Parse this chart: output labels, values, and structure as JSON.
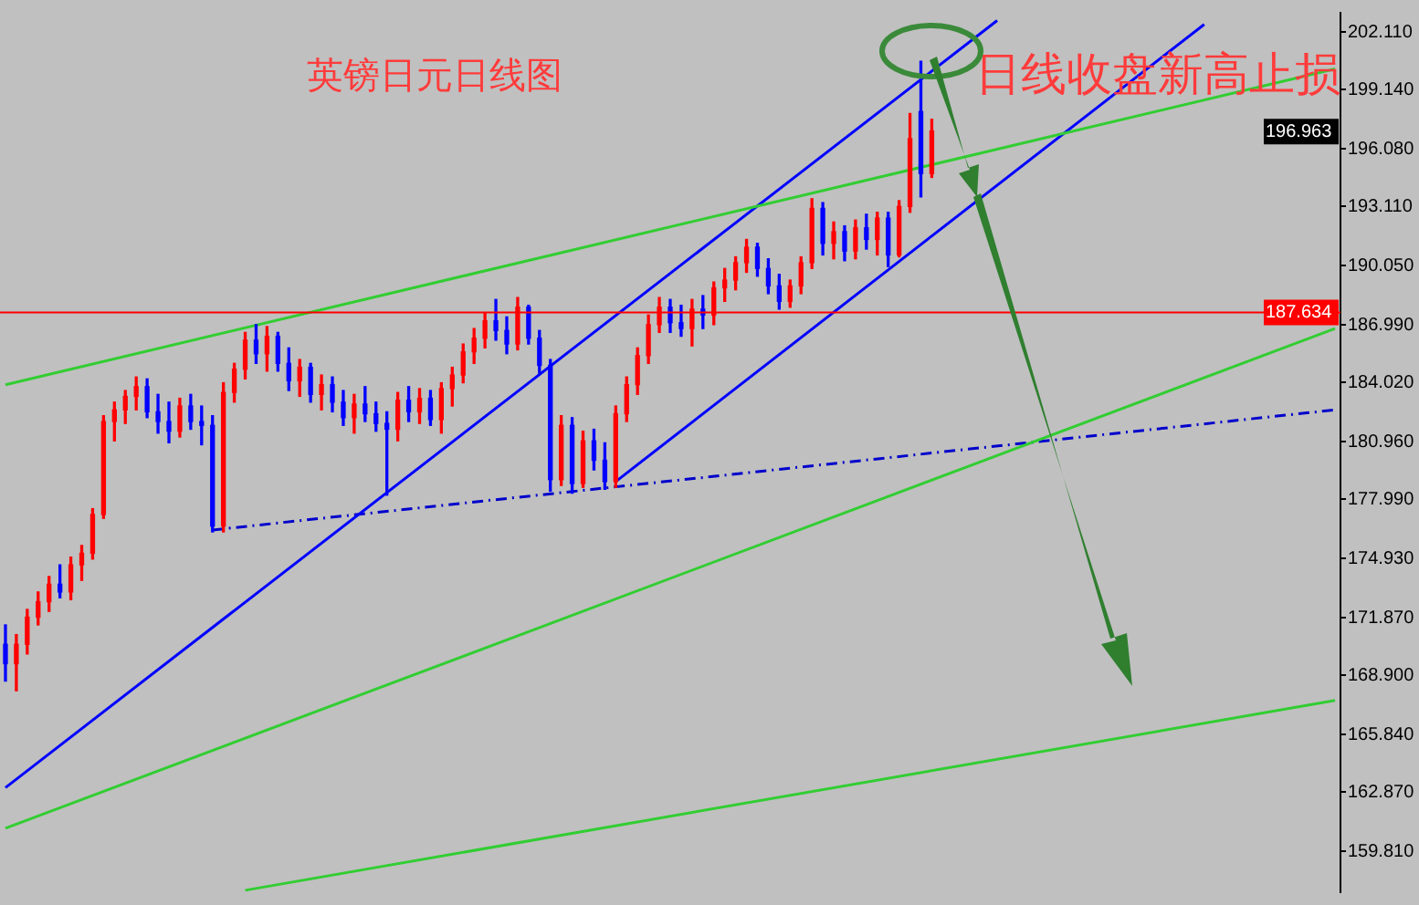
{
  "chart_data": {
    "type": "candlestick",
    "title": "英镑日元日线图",
    "categories": [
      null,
      null,
      null,
      null,
      null,
      null,
      null,
      null,
      null,
      null,
      null,
      null,
      null,
      null,
      null,
      null,
      null,
      null,
      null,
      null,
      null,
      null,
      null,
      null,
      null,
      null,
      null,
      null,
      null,
      null,
      null,
      null,
      null,
      null,
      null,
      null,
      null,
      null,
      null,
      null,
      null,
      null,
      null,
      null,
      null,
      null,
      null,
      null,
      null,
      null,
      null,
      null,
      null,
      null,
      null,
      null,
      null,
      null,
      null,
      null,
      null,
      null,
      null,
      null,
      null,
      null,
      null,
      null,
      null,
      null,
      null,
      null,
      null,
      null,
      null,
      null,
      null,
      null,
      null,
      null,
      null,
      null,
      null,
      null,
      null,
      null,
      null,
      null,
      null,
      null,
      null,
      null,
      null,
      null,
      null,
      null,
      null,
      null,
      null,
      null,
      null,
      null,
      null,
      null,
      null,
      null,
      null,
      null,
      null,
      null,
      null,
      null,
      null,
      null,
      null,
      null,
      null,
      null,
      null,
      null,
      null,
      null,
      null
    ],
    "ohlc": [
      [
        170.5,
        171.5,
        168.6,
        169.5
      ],
      [
        169.5,
        171.0,
        168.1,
        170.5
      ],
      [
        170.5,
        172.3,
        170.0,
        171.9
      ],
      [
        171.9,
        173.2,
        171.5,
        172.7
      ],
      [
        172.7,
        174.0,
        172.2,
        173.6
      ],
      [
        173.6,
        174.6,
        172.9,
        173.2
      ],
      [
        173.2,
        175.0,
        172.8,
        174.6
      ],
      [
        174.6,
        175.6,
        173.8,
        175.2
      ],
      [
        175.2,
        177.5,
        174.9,
        177.2
      ],
      [
        177.2,
        182.3,
        177.0,
        182.0
      ],
      [
        182.0,
        183.0,
        181.0,
        182.6
      ],
      [
        182.6,
        183.6,
        181.9,
        183.3
      ],
      [
        183.3,
        184.3,
        182.6,
        183.8
      ],
      [
        183.8,
        184.2,
        182.2,
        182.5
      ],
      [
        182.5,
        183.4,
        181.4,
        182.0
      ],
      [
        182.0,
        183.0,
        180.9,
        181.5
      ],
      [
        181.5,
        183.2,
        181.2,
        182.8
      ],
      [
        182.8,
        183.4,
        181.6,
        182.0
      ],
      [
        182.0,
        182.8,
        180.8,
        181.8
      ],
      [
        181.8,
        182.3,
        176.3,
        176.6
      ],
      [
        176.6,
        184.0,
        176.3,
        183.5
      ],
      [
        183.5,
        185.0,
        183.0,
        184.7
      ],
      [
        184.7,
        186.6,
        184.2,
        186.2
      ],
      [
        186.2,
        187.0,
        185.0,
        185.5
      ],
      [
        185.5,
        186.9,
        184.6,
        186.4
      ],
      [
        186.4,
        186.6,
        184.6,
        185.0
      ],
      [
        185.0,
        185.8,
        183.6,
        184.1
      ],
      [
        184.1,
        185.2,
        183.3,
        184.8
      ],
      [
        184.8,
        185.0,
        183.0,
        183.4
      ],
      [
        183.4,
        184.4,
        182.6,
        183.9
      ],
      [
        183.9,
        184.3,
        182.5,
        183.0
      ],
      [
        183.0,
        183.6,
        181.8,
        182.2
      ],
      [
        182.2,
        183.4,
        181.4,
        182.9
      ],
      [
        182.9,
        183.8,
        182.0,
        182.4
      ],
      [
        182.4,
        183.0,
        181.5,
        181.9
      ],
      [
        181.9,
        182.5,
        178.2,
        181.6
      ],
      [
        181.6,
        183.5,
        181.0,
        183.1
      ],
      [
        183.1,
        183.8,
        182.0,
        182.5
      ],
      [
        182.5,
        183.7,
        181.9,
        183.2
      ],
      [
        183.2,
        183.6,
        181.8,
        182.1
      ],
      [
        182.1,
        184.0,
        181.4,
        183.7
      ],
      [
        183.7,
        184.8,
        182.8,
        184.4
      ],
      [
        184.4,
        186.0,
        184.0,
        185.6
      ],
      [
        185.6,
        186.8,
        185.0,
        186.3
      ],
      [
        186.3,
        187.6,
        185.8,
        187.2
      ],
      [
        187.2,
        188.3,
        186.2,
        186.7
      ],
      [
        186.7,
        187.4,
        185.5,
        186.0
      ],
      [
        186.0,
        188.4,
        185.7,
        187.9
      ],
      [
        187.9,
        188.0,
        186.0,
        186.3
      ],
      [
        186.3,
        186.7,
        184.5,
        184.9
      ],
      [
        184.9,
        185.2,
        178.4,
        179.0
      ],
      [
        179.0,
        182.3,
        178.7,
        181.8
      ],
      [
        181.8,
        182.2,
        178.3,
        178.8
      ],
      [
        178.8,
        181.5,
        178.6,
        181.0
      ],
      [
        181.0,
        181.6,
        179.5,
        180.0
      ],
      [
        180.0,
        180.9,
        178.5,
        178.9
      ],
      [
        178.9,
        182.8,
        178.6,
        182.4
      ],
      [
        182.4,
        184.3,
        182.0,
        183.9
      ],
      [
        183.9,
        185.8,
        183.4,
        185.4
      ],
      [
        185.4,
        187.5,
        185.0,
        187.0
      ],
      [
        187.0,
        188.4,
        186.6,
        187.9
      ],
      [
        187.9,
        188.3,
        186.6,
        187.1
      ],
      [
        187.1,
        188.0,
        186.4,
        186.8
      ],
      [
        186.8,
        188.3,
        185.9,
        187.8
      ],
      [
        187.8,
        188.5,
        186.8,
        187.5
      ],
      [
        187.5,
        189.2,
        187.0,
        188.9
      ],
      [
        188.9,
        189.9,
        188.2,
        189.3
      ],
      [
        189.3,
        190.5,
        188.8,
        190.2
      ],
      [
        190.2,
        191.4,
        189.7,
        191.0
      ],
      [
        191.0,
        191.2,
        189.5,
        189.9
      ],
      [
        189.9,
        190.4,
        188.6,
        189.0
      ],
      [
        189.0,
        189.6,
        187.8,
        188.2
      ],
      [
        188.2,
        189.3,
        187.9,
        189.0
      ],
      [
        189.0,
        190.5,
        188.6,
        190.2
      ],
      [
        190.2,
        193.5,
        189.9,
        193.0
      ],
      [
        193.0,
        193.3,
        190.6,
        191.2
      ],
      [
        191.2,
        192.3,
        190.4,
        191.8
      ],
      [
        191.8,
        192.1,
        190.3,
        190.8
      ],
      [
        190.8,
        192.4,
        190.4,
        192.0
      ],
      [
        192.0,
        192.7,
        190.9,
        191.4
      ],
      [
        191.4,
        192.8,
        190.6,
        192.5
      ],
      [
        192.5,
        192.8,
        190.0,
        190.6
      ],
      [
        190.6,
        193.4,
        190.5,
        193.1
      ],
      [
        193.1,
        197.9,
        192.8,
        196.6
      ],
      [
        198.0,
        200.6,
        193.6,
        194.8
      ],
      [
        194.8,
        197.6,
        194.6,
        197.0
      ],
      null,
      null,
      null,
      null,
      null,
      null,
      null,
      null,
      null,
      null,
      null,
      null,
      null,
      null,
      null,
      null,
      null,
      null,
      null,
      null,
      null,
      null,
      null,
      null,
      null,
      null,
      null,
      null,
      null,
      null,
      null,
      null,
      null,
      null,
      null,
      null,
      null
    ],
    "colors": [
      "#0000ff",
      "#ff0000",
      "#ff0000",
      "#ff0000",
      "#ff0000",
      "#0000ff",
      "#ff0000",
      "#ff0000",
      "#ff0000",
      "#ff0000",
      "#ff0000",
      "#ff0000",
      "#ff0000",
      "#0000ff",
      "#0000ff",
      "#0000ff",
      "#ff0000",
      "#0000ff",
      "#0000ff",
      "#0000ff",
      "#ff0000",
      "#ff0000",
      "#ff0000",
      "#0000ff",
      "#ff0000",
      "#0000ff",
      "#0000ff",
      "#ff0000",
      "#0000ff",
      "#ff0000",
      "#0000ff",
      "#0000ff",
      "#ff0000",
      "#0000ff",
      "#0000ff",
      "#0000ff",
      "#ff0000",
      "#0000ff",
      "#ff0000",
      "#0000ff",
      "#ff0000",
      "#ff0000",
      "#ff0000",
      "#ff0000",
      "#ff0000",
      "#0000ff",
      "#0000ff",
      "#ff0000",
      "#0000ff",
      "#0000ff",
      "#0000ff",
      "#ff0000",
      "#0000ff",
      "#ff0000",
      "#0000ff",
      "#0000ff",
      "#ff0000",
      "#ff0000",
      "#ff0000",
      "#ff0000",
      "#ff0000",
      "#0000ff",
      "#0000ff",
      "#ff0000",
      "#0000ff",
      "#ff0000",
      "#ff0000",
      "#ff0000",
      "#ff0000",
      "#0000ff",
      "#0000ff",
      "#0000ff",
      "#ff0000",
      "#ff0000",
      "#ff0000",
      "#0000ff",
      "#ff0000",
      "#0000ff",
      "#ff0000",
      "#0000ff",
      "#ff0000",
      "#0000ff",
      "#ff0000",
      "#ff0000",
      "#0000ff",
      "#ff0000",
      null,
      null,
      null,
      null,
      null,
      null,
      null,
      null,
      null,
      null,
      null,
      null,
      null,
      null,
      null,
      null,
      null,
      null,
      null,
      null,
      null,
      null,
      null,
      null,
      null,
      null,
      null,
      null,
      null,
      null,
      null,
      null,
      null,
      null,
      null,
      null,
      null
    ],
    "series": [
      {
        "type": "line",
        "color": "#32cd32",
        "values": [
          183.9,
          null,
          null,
          null,
          null,
          null,
          null,
          null,
          null,
          null,
          null,
          null,
          null,
          null,
          null,
          null,
          null,
          null,
          null,
          null,
          null,
          null,
          null,
          null,
          null,
          null,
          null,
          null,
          null,
          null,
          null,
          null,
          null,
          null,
          null,
          null,
          null,
          null,
          null,
          null,
          null,
          null,
          null,
          null,
          null,
          null,
          null,
          null,
          null,
          null,
          null,
          null,
          null,
          null,
          null,
          null,
          null,
          null,
          null,
          null,
          null,
          null,
          null,
          null,
          null,
          null,
          null,
          null,
          null,
          null,
          null,
          null,
          null,
          null,
          null,
          null,
          null,
          null,
          null,
          null,
          null,
          null,
          null,
          null,
          null,
          null,
          null,
          null,
          null,
          null,
          null,
          null,
          null,
          null,
          null,
          null,
          null,
          null,
          null,
          null,
          null,
          null,
          null,
          null,
          null,
          null,
          null,
          null,
          null,
          null,
          null,
          null,
          null,
          null,
          null,
          null,
          null,
          null,
          null,
          null,
          null,
          null,
          200.2
        ]
      },
      {
        "type": "line",
        "color": "#32cd32",
        "values": [
          161.0,
          null,
          null,
          null,
          null,
          null,
          null,
          null,
          null,
          null,
          null,
          null,
          null,
          null,
          null,
          null,
          null,
          null,
          null,
          null,
          null,
          null,
          null,
          null,
          null,
          null,
          null,
          null,
          null,
          null,
          null,
          null,
          null,
          null,
          null,
          null,
          null,
          null,
          null,
          null,
          null,
          null,
          null,
          null,
          null,
          null,
          null,
          null,
          null,
          null,
          null,
          null,
          null,
          null,
          null,
          null,
          null,
          null,
          null,
          null,
          null,
          null,
          null,
          null,
          null,
          null,
          null,
          null,
          null,
          null,
          null,
          null,
          null,
          null,
          null,
          null,
          null,
          null,
          null,
          null,
          null,
          null,
          null,
          null,
          null,
          null,
          null,
          null,
          null,
          null,
          null,
          null,
          null,
          null,
          null,
          null,
          null,
          null,
          null,
          null,
          null,
          null,
          null,
          null,
          null,
          null,
          null,
          null,
          null,
          null,
          null,
          null,
          null,
          null,
          null,
          null,
          null,
          null,
          null,
          null,
          null,
          null,
          186.8
        ]
      },
      {
        "type": "line",
        "color": "#32cd32",
        "values": [
          null,
          null,
          null,
          null,
          null,
          null,
          null,
          null,
          null,
          null,
          null,
          null,
          null,
          null,
          null,
          null,
          null,
          null,
          null,
          null,
          null,
          null,
          157.8,
          null,
          null,
          null,
          null,
          null,
          null,
          null,
          null,
          null,
          null,
          null,
          null,
          null,
          null,
          null,
          null,
          null,
          null,
          null,
          null,
          null,
          null,
          null,
          null,
          null,
          null,
          null,
          null,
          null,
          null,
          null,
          null,
          null,
          null,
          null,
          null,
          null,
          null,
          null,
          null,
          null,
          null,
          null,
          null,
          null,
          null,
          null,
          null,
          null,
          null,
          null,
          null,
          null,
          null,
          null,
          null,
          null,
          null,
          null,
          null,
          null,
          null,
          null,
          null,
          null,
          null,
          null,
          null,
          null,
          null,
          null,
          null,
          null,
          null,
          null,
          null,
          null,
          null,
          null,
          null,
          null,
          null,
          null,
          null,
          null,
          null,
          null,
          null,
          null,
          null,
          null,
          null,
          null,
          null,
          null,
          null,
          null,
          null,
          null,
          167.6
        ]
      },
      {
        "type": "line",
        "color": "#0000ff",
        "values": [
          163.1,
          null,
          null,
          null,
          null,
          null,
          null,
          null,
          null,
          null,
          null,
          null,
          null,
          null,
          null,
          null,
          null,
          null,
          null,
          null,
          null,
          null,
          null,
          null,
          null,
          null,
          null,
          null,
          null,
          null,
          null,
          null,
          null,
          null,
          null,
          null,
          null,
          null,
          null,
          null,
          null,
          null,
          null,
          null,
          null,
          null,
          null,
          null,
          null,
          null,
          null,
          null,
          null,
          null,
          null,
          null,
          null,
          null,
          null,
          null,
          null,
          null,
          null,
          null,
          null,
          null,
          null,
          null,
          null,
          null,
          null,
          null,
          null,
          null,
          null,
          null,
          null,
          null,
          null,
          null,
          null,
          null,
          null,
          null,
          null,
          null,
          null,
          null,
          null,
          null,
          null,
          202.7,
          null,
          null,
          null,
          null,
          null,
          null,
          null,
          null,
          null,
          null,
          null,
          null,
          null,
          null,
          null,
          null,
          null,
          null,
          null,
          null,
          null,
          null,
          null,
          null,
          null,
          null,
          null,
          null,
          null,
          null,
          null
        ]
      },
      {
        "type": "line",
        "color": "#0000ff",
        "values": [
          null,
          null,
          null,
          null,
          null,
          null,
          null,
          null,
          null,
          null,
          null,
          null,
          null,
          null,
          null,
          null,
          null,
          null,
          null,
          null,
          null,
          null,
          null,
          null,
          null,
          null,
          null,
          null,
          null,
          null,
          null,
          null,
          null,
          null,
          null,
          null,
          null,
          null,
          null,
          null,
          null,
          null,
          null,
          null,
          null,
          null,
          null,
          null,
          null,
          null,
          null,
          null,
          null,
          null,
          null,
          null,
          178.9,
          null,
          null,
          null,
          null,
          null,
          null,
          null,
          null,
          null,
          null,
          null,
          null,
          null,
          null,
          null,
          null,
          null,
          null,
          null,
          null,
          null,
          null,
          null,
          null,
          null,
          null,
          null,
          null,
          null,
          null,
          null,
          null,
          null,
          null,
          null,
          null,
          null,
          null,
          null,
          null,
          null,
          null,
          null,
          null,
          null,
          null,
          null,
          null,
          null,
          null,
          null,
          null,
          null,
          202.5,
          null,
          null,
          null,
          null,
          null,
          null,
          null,
          null,
          null,
          null,
          null,
          null
        ]
      },
      {
        "type": "line",
        "color": "#0000cc",
        "line_style": "dashed",
        "values": [
          null,
          null,
          null,
          null,
          null,
          null,
          null,
          null,
          null,
          null,
          null,
          null,
          null,
          null,
          null,
          null,
          null,
          null,
          null,
          176.4,
          null,
          null,
          null,
          null,
          null,
          null,
          null,
          null,
          null,
          null,
          null,
          null,
          null,
          null,
          null,
          null,
          null,
          null,
          null,
          null,
          null,
          null,
          null,
          null,
          null,
          null,
          null,
          null,
          null,
          null,
          null,
          null,
          null,
          null,
          null,
          null,
          null,
          null,
          null,
          null,
          null,
          null,
          null,
          null,
          null,
          null,
          null,
          null,
          null,
          null,
          null,
          null,
          null,
          null,
          null,
          null,
          null,
          null,
          null,
          null,
          null,
          null,
          null,
          null,
          null,
          null,
          null,
          null,
          null,
          null,
          null,
          null,
          null,
          null,
          null,
          null,
          null,
          null,
          null,
          null,
          null,
          null,
          null,
          null,
          null,
          null,
          null,
          null,
          null,
          null,
          null,
          null,
          null,
          null,
          null,
          null,
          null,
          null,
          null,
          null,
          null,
          null,
          182.6
        ]
      }
    ],
    "ylim": [
      157.7,
      203.1
    ],
    "yticks": [
      {
        "value": 159.81,
        "label": "159.810"
      },
      {
        "value": 162.87,
        "label": "162.870"
      },
      {
        "value": 165.84,
        "label": "165.840"
      },
      {
        "value": 168.9,
        "label": "168.900"
      },
      {
        "value": 171.87,
        "label": "171.870"
      },
      {
        "value": 174.93,
        "label": "174.930"
      },
      {
        "value": 177.99,
        "label": "177.990"
      },
      {
        "value": 180.96,
        "label": "180.960"
      },
      {
        "value": 184.02,
        "label": "184.020"
      },
      {
        "value": 186.99,
        "label": "186.990"
      },
      {
        "value": 190.05,
        "label": "190.050"
      },
      {
        "value": 193.11,
        "label": "193.110"
      },
      {
        "value": 196.08,
        "label": "196.080"
      },
      {
        "value": 199.14,
        "label": "199.140"
      },
      {
        "value": 202.11,
        "label": "202.110"
      }
    ],
    "ref_lines": [
      {
        "axis": "y",
        "value": 187.634,
        "label": "187.634",
        "color": "#ff0000"
      }
    ],
    "annotations": [
      "日线收盘新高止损",
      {
        "text": "196.963",
        "y": 196.963
      }
    ],
    "tick_labels": "y",
    "grid": false,
    "legend": false
  }
}
